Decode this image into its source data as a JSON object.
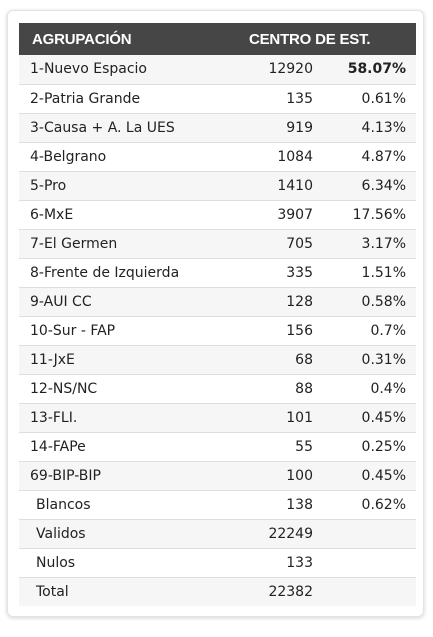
{
  "header": {
    "col_name": "AGRUPACIÓN",
    "col_votes": "CENTRO DE EST."
  },
  "rows": [
    {
      "name": "1-Nuevo Espacio",
      "votes": "12920",
      "pct": "58.07%"
    },
    {
      "name": "2-Patria Grande",
      "votes": "135",
      "pct": "0.61%"
    },
    {
      "name": "3-Causa + A. La UES",
      "votes": "919",
      "pct": "4.13%"
    },
    {
      "name": "4-Belgrano",
      "votes": "1084",
      "pct": "4.87%"
    },
    {
      "name": "5-Pro",
      "votes": "1410",
      "pct": "6.34%"
    },
    {
      "name": "6-MxE",
      "votes": "3907",
      "pct": "17.56%"
    },
    {
      "name": "7-El Germen",
      "votes": "705",
      "pct": "3.17%"
    },
    {
      "name": "8-Frente de Izquierda",
      "votes": "335",
      "pct": "1.51%"
    },
    {
      "name": "9-AUI CC",
      "votes": "128",
      "pct": "0.58%"
    },
    {
      "name": "10-Sur - FAP",
      "votes": "156",
      "pct": "0.7%"
    },
    {
      "name": "11-JxE",
      "votes": "68",
      "pct": "0.31%"
    },
    {
      "name": "12-NS/NC",
      "votes": "88",
      "pct": "0.4%"
    },
    {
      "name": "13-FLI.",
      "votes": "101",
      "pct": "0.45%"
    },
    {
      "name": "14-FAPe",
      "votes": "55",
      "pct": "0.25%"
    },
    {
      "name": "69-BIP-BIP",
      "votes": "100",
      "pct": "0.45%"
    },
    {
      "name": "Blancos",
      "votes": "138",
      "pct": "0.62%"
    },
    {
      "name": "Validos",
      "votes": "22249",
      "pct": ""
    },
    {
      "name": "Nulos",
      "votes": "133",
      "pct": ""
    },
    {
      "name": "Total",
      "votes": "22382",
      "pct": ""
    }
  ]
}
